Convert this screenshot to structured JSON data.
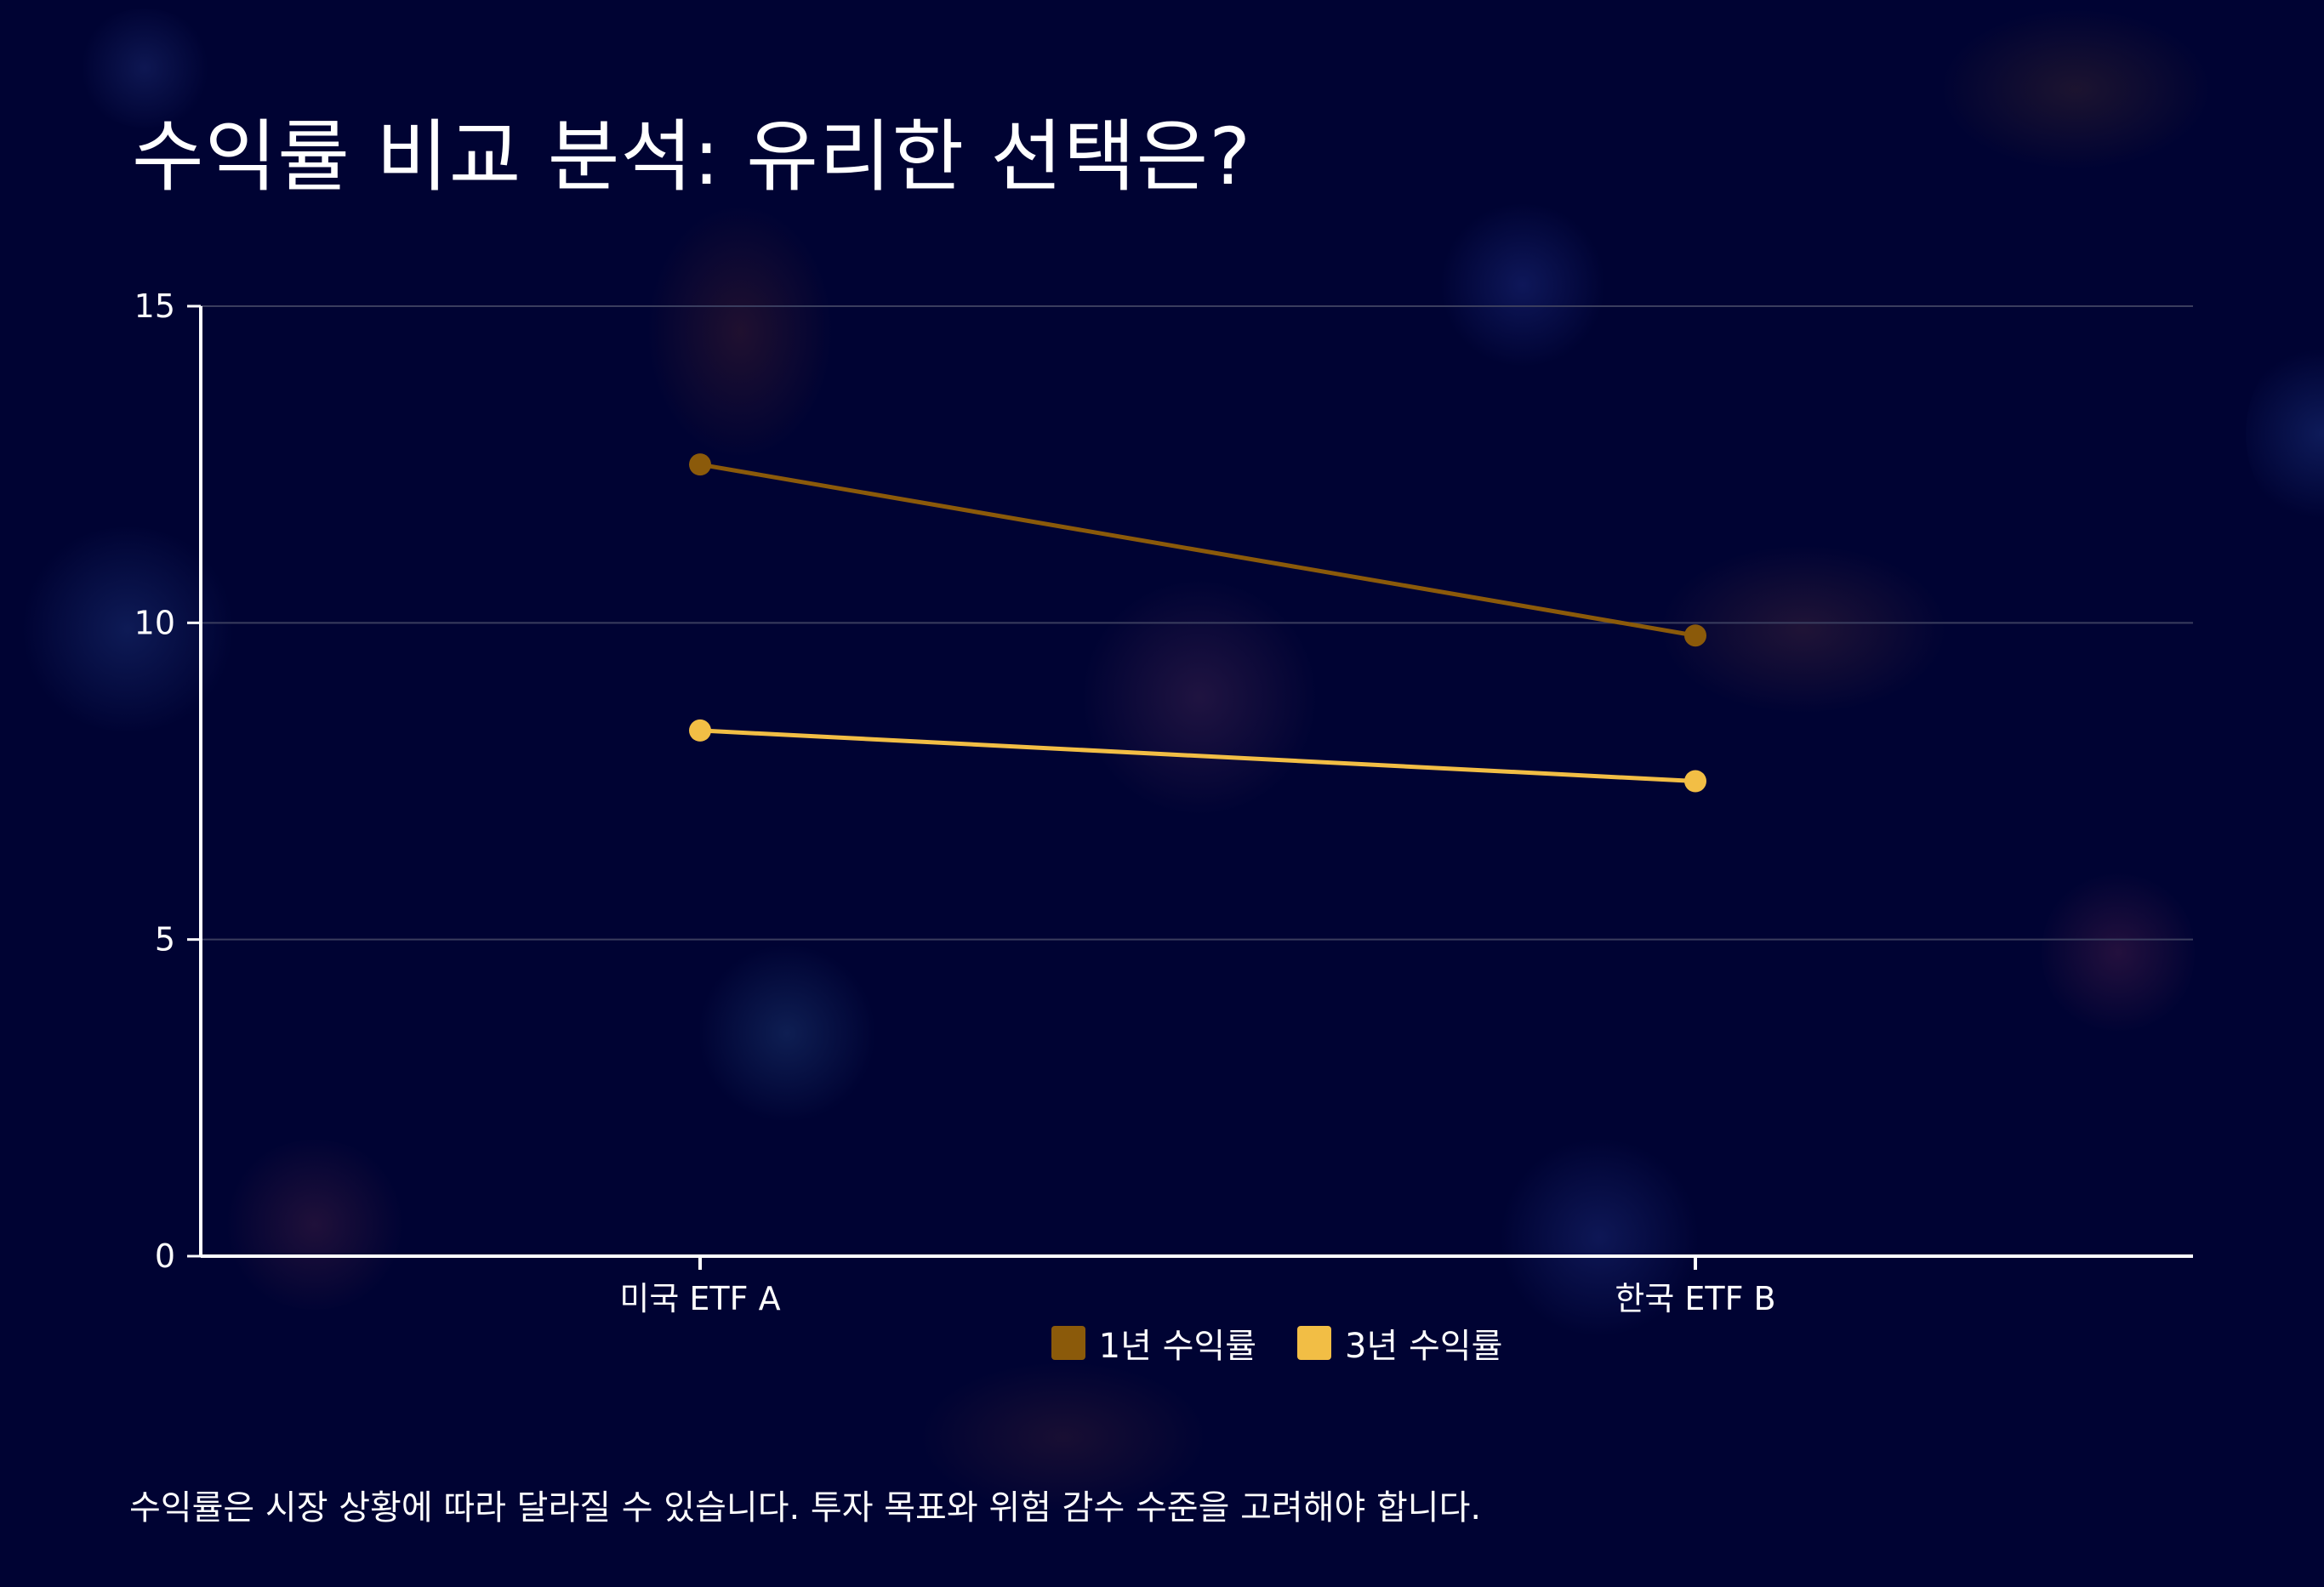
{
  "title": "수익률 비교 분석: 유리한 선택은?",
  "note": "수익률은 시장 상황에 따라 달라질 수 있습니다. 투자 목표와 위험 감수 수준을 고려해야 합니다.",
  "colors": {
    "background": "#000333",
    "series_1y": "#8B5A0A",
    "series_3y": "#F2BE45",
    "grid": "#3A3D5E",
    "axis": "#FFFFFF"
  },
  "chart_data": {
    "type": "line",
    "title": "수익률 비교 분석: 유리한 선택은?",
    "categories": [
      "미국 ETF A",
      "한국 ETF B"
    ],
    "series": [
      {
        "name": "1년 수익률",
        "values": [
          12.5,
          9.8
        ]
      },
      {
        "name": "3년 수익률",
        "values": [
          8.3,
          7.5
        ]
      }
    ],
    "xlabel": "",
    "ylabel": "",
    "ylim": [
      0,
      15
    ],
    "yticks": [
      0,
      5,
      10,
      15
    ],
    "grid": true,
    "legend_position": "bottom"
  }
}
